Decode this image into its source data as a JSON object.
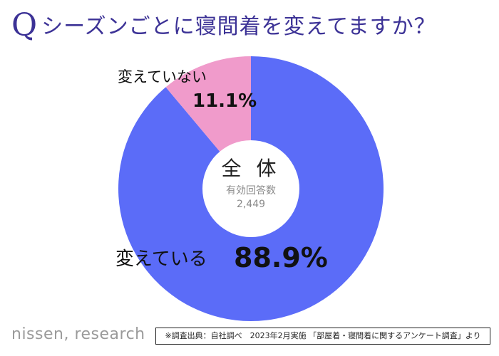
{
  "title": {
    "q_mark": "Q",
    "text": "シーズンごとに寝間着を変えてますか？"
  },
  "chart_data": {
    "type": "pie",
    "style": "donut",
    "categories": [
      "変えている",
      "変えていない"
    ],
    "values": [
      88.9,
      11.1
    ],
    "value_labels": [
      "88.9%",
      "11.1%"
    ],
    "colors": [
      "#5b6cf8",
      "#f09bcb"
    ],
    "center": {
      "title": "全 体",
      "subtitle": "有効回答数",
      "count": "2,449"
    }
  },
  "footer": {
    "logo": "nissen, research",
    "source": "※調査出典：自社調べ　2023年2月実施 「部屋着・寝間着に関するアンケート調査」より"
  }
}
